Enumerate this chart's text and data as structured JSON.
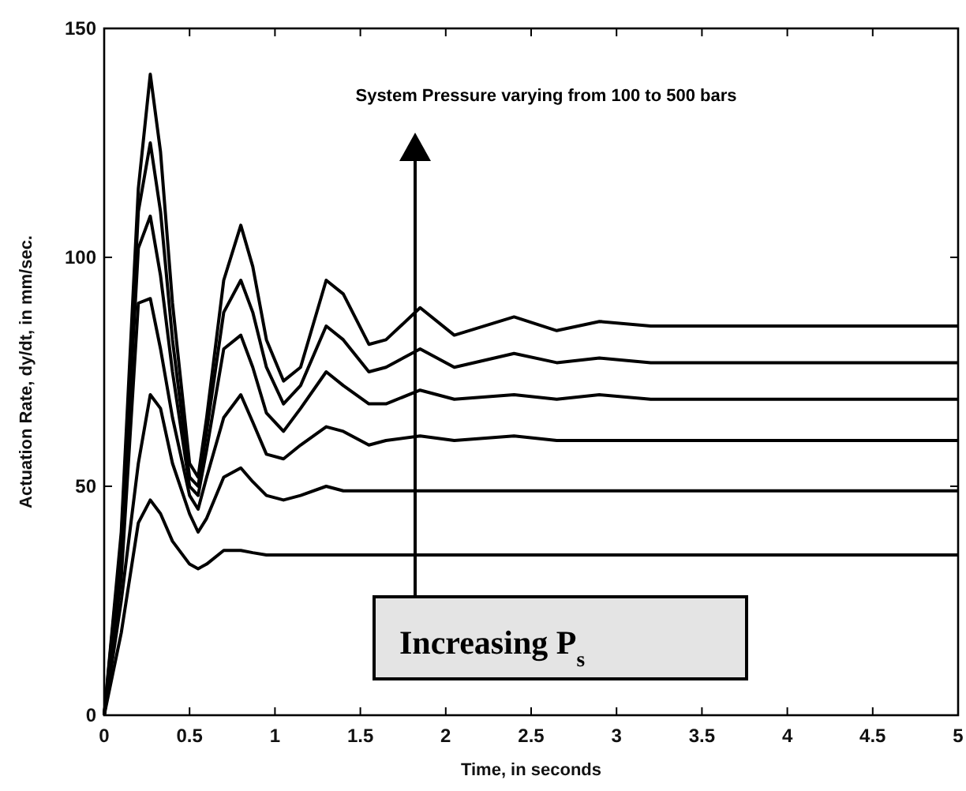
{
  "chart_data": {
    "type": "line",
    "xlabel": "Time, in seconds",
    "ylabel": "Actuation Rate, dy/dt, in mm/sec.",
    "annotations": [
      "System Pressure varying from 100 to 500 bars",
      "Increasing P$_{s}$"
    ],
    "x": [
      0,
      0.1,
      0.2,
      0.27,
      0.33,
      0.4,
      0.5,
      0.55,
      0.6,
      0.7,
      0.8,
      0.87,
      0.95,
      1.05,
      1.15,
      1.3,
      1.4,
      1.55,
      1.65,
      1.85,
      2.05,
      2.4,
      2.65,
      2.9,
      3.2,
      4,
      5
    ],
    "series": [
      {
        "color": "#000000",
        "values": [
          0,
          40,
          115,
          140,
          123,
          90,
          55,
          52,
          65,
          95,
          107,
          98,
          82,
          73,
          76,
          95,
          92,
          81,
          82,
          89,
          83,
          87,
          84,
          86,
          85,
          85,
          85
        ]
      },
      {
        "color": "#000000",
        "values": [
          0,
          38,
          110,
          125,
          110,
          82,
          52,
          50,
          62,
          88,
          95,
          88,
          76,
          68,
          72,
          85,
          82,
          75,
          76,
          80,
          76,
          79,
          77,
          78,
          77,
          77,
          77
        ]
      },
      {
        "color": "#000000",
        "values": [
          0,
          35,
          102,
          109,
          96,
          75,
          50,
          48,
          58,
          80,
          83,
          76,
          66,
          62,
          67,
          75,
          72,
          68,
          68,
          71,
          69,
          70,
          69,
          70,
          69,
          69,
          69
        ]
      },
      {
        "color": "#000000",
        "values": [
          0,
          30,
          90,
          91,
          80,
          65,
          48,
          45,
          52,
          65,
          70,
          64,
          57,
          56,
          59,
          63,
          62,
          59,
          60,
          61,
          60,
          61,
          60,
          60,
          60,
          60,
          60
        ]
      },
      {
        "color": "#000000",
        "values": [
          0,
          25,
          55,
          70,
          67,
          55,
          44,
          40,
          43,
          52,
          54,
          51,
          48,
          47,
          48,
          50,
          49,
          49,
          49,
          49,
          49,
          49,
          49,
          49,
          49,
          49,
          49
        ]
      },
      {
        "color": "#000000",
        "values": [
          0,
          18,
          42,
          47,
          44,
          38,
          33,
          32,
          33,
          36,
          36,
          35.5,
          35,
          35,
          35,
          35,
          35,
          35,
          35,
          35,
          35,
          35,
          35,
          35,
          35,
          35,
          35
        ]
      }
    ],
    "xlim": [
      0,
      5
    ],
    "xticks": [
      0,
      0.5,
      1,
      1.5,
      2,
      2.5,
      3,
      3.5,
      4,
      4.5,
      5
    ],
    "ylim": [
      0,
      150
    ],
    "yticks": [
      0,
      50,
      100,
      150
    ],
    "grid": false,
    "marker": "none",
    "line_style": "solid"
  }
}
